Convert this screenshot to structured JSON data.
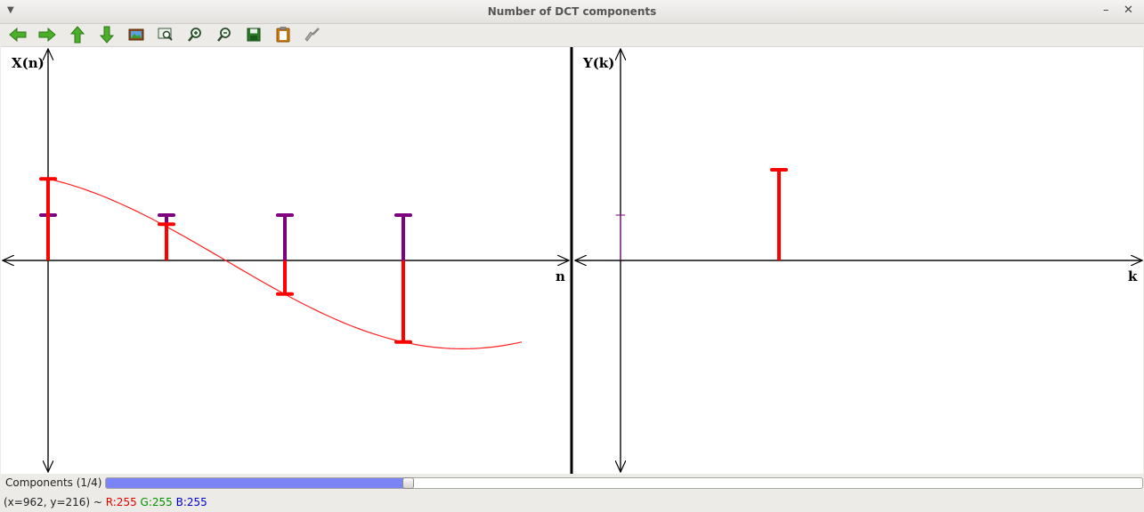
{
  "window": {
    "title": "Number of DCT components"
  },
  "toolbar": {
    "buttons": [
      {
        "name": "back-arrow-icon",
        "color": "#4caf2a"
      },
      {
        "name": "forward-arrow-icon",
        "color": "#4caf2a"
      },
      {
        "name": "up-arrow-icon",
        "color": "#4caf2a"
      },
      {
        "name": "down-arrow-icon",
        "color": "#4caf2a"
      },
      {
        "name": "image-icon",
        "color": "#8a4a1a"
      },
      {
        "name": "zoom-fit-icon",
        "color": "#3a5a3a"
      },
      {
        "name": "zoom-in-icon",
        "color": "#3a5a3a"
      },
      {
        "name": "zoom-out-icon",
        "color": "#3a5a3a"
      },
      {
        "name": "save-icon",
        "color": "#2a7a2a"
      },
      {
        "name": "clipboard-icon",
        "color": "#c87a10"
      },
      {
        "name": "clear-brush-icon",
        "color": "#999999"
      }
    ]
  },
  "chart_data": [
    {
      "type": "stem",
      "ylabel": "X(n)",
      "xlabel": "n",
      "x": [
        0,
        1,
        2,
        3
      ],
      "series": [
        {
          "values": [
            0.5,
            0.5,
            0.5,
            0.5
          ],
          "color": "#800080"
        },
        {
          "values": [
            0.9,
            0.4,
            -0.37,
            -0.9
          ],
          "color": "#ff0000"
        }
      ],
      "curve": {
        "color": "#ff2020",
        "points": [
          [
            0,
            0.9
          ],
          [
            0.5,
            0.7
          ],
          [
            1,
            0.4
          ],
          [
            1.5,
            0.02
          ],
          [
            2,
            -0.37
          ],
          [
            2.5,
            -0.7
          ],
          [
            3,
            -0.9
          ],
          [
            3.5,
            -0.97
          ],
          [
            4,
            -0.9
          ]
        ]
      },
      "xlim": [
        -0.4,
        4.4
      ],
      "ylim": [
        -2.35,
        2.35
      ]
    },
    {
      "type": "stem",
      "ylabel": "Y(k)",
      "xlabel": "k",
      "x": [
        0,
        1
      ],
      "series": [
        {
          "values": [
            0.5,
            0
          ],
          "color": "#800080"
        },
        {
          "values": [
            0,
            1.0
          ],
          "color": "#ff0000"
        }
      ],
      "xlim": [
        -0.3,
        3.3
      ],
      "ylim": [
        -2.35,
        2.35
      ]
    }
  ],
  "bottom": {
    "components_label": "Components (1/4)",
    "slider_value": 0.25,
    "slider_fill_color": "#7b84f5"
  },
  "status": {
    "coords": "(x=962, y=216) ~ ",
    "r": "R:255",
    "g": "G:255",
    "b": "B:255"
  }
}
